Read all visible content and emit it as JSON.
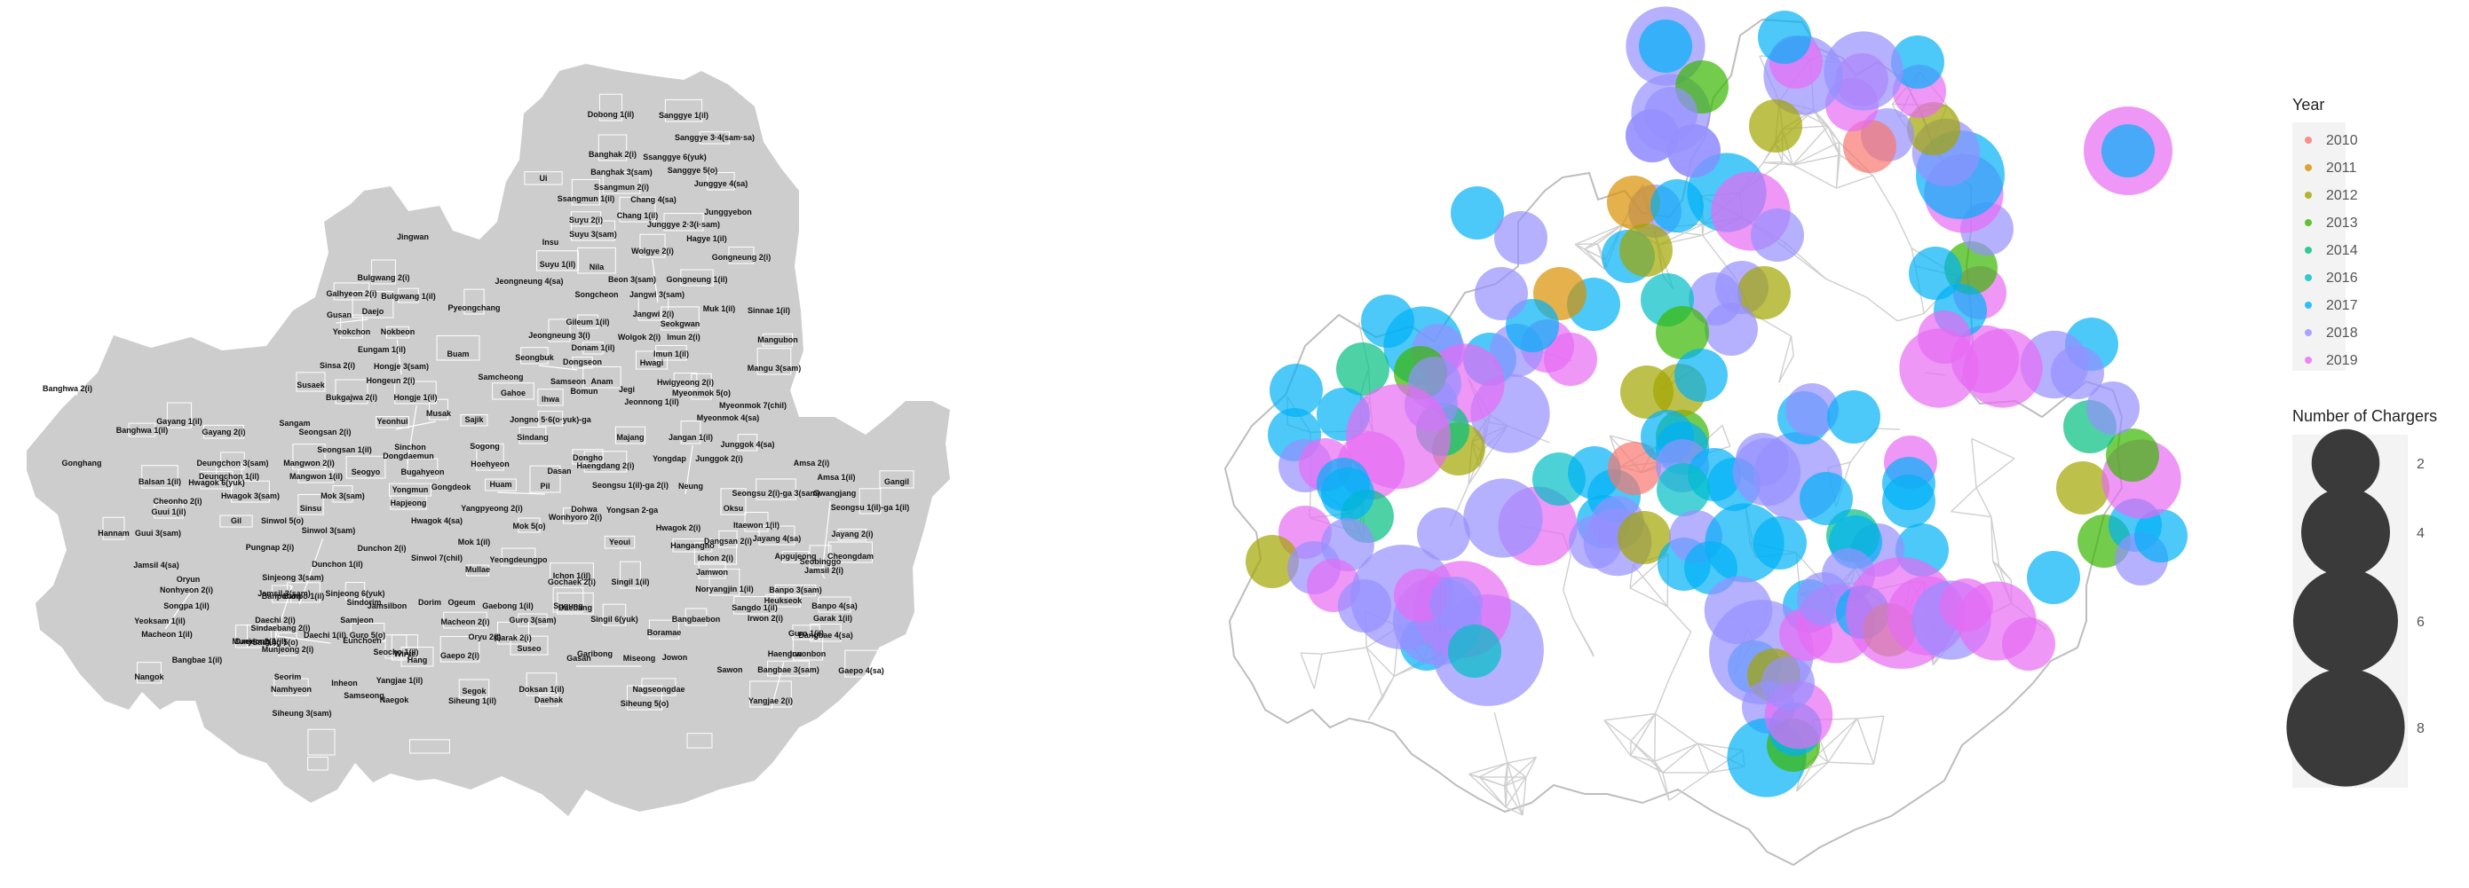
{
  "colors": {
    "land": "#cdcdcd",
    "boundary": "#ffffff",
    "outline": "#bdbdbd",
    "inner_boundary": "#cfcfcf",
    "year_colors": {
      "2010": "#f8766d",
      "2011": "#d89000",
      "2012": "#a3a500",
      "2013": "#39b600",
      "2014": "#00bf7d",
      "2016": "#00bfc4",
      "2017": "#00b0f6",
      "2018": "#9590ff",
      "2019": "#e76bf3"
    }
  },
  "left_map": {
    "labels": [
      "Dobong 1(il)",
      "Sanggye 1(il)",
      "Sanggye 3·4(sam·sa)",
      "Banghak 2(i)",
      "Ssanggye 6(yuk)",
      "Sanggye 5(o)",
      "Banghak 3(sam)",
      "Ui",
      "Ssangmun 2(i)",
      "Junggye 4(sa)",
      "Ssangmun 1(il)",
      "Chang 4(sa)",
      "Junggyebon",
      "Suyu 2(i)",
      "Chang 1(il)",
      "Suyu 3(sam)",
      "Junggye 2·3(i·sam)",
      "Insu",
      "Hagye 1(il)",
      "Jingwan",
      "Wolgye 2(i)",
      "Gongneung 2(i)",
      "Suyu 1(il)",
      "Nila",
      "Jeongneung 4(sa)",
      "Beon 3(sam)",
      "Gongneung 1(il)",
      "Bulgwang 2(i)",
      "Galhyeon 2(i)",
      "Bulgwang 1(il)",
      "Songcheon",
      "Jangwi 3(sam)",
      "Gusan",
      "Daejo",
      "Pyeongchang",
      "Gileum 1(il)",
      "Jangwi 2(i)",
      "Muk 1(il)",
      "Sinnae 1(il)",
      "Yeokchon",
      "Nokbeon",
      "Seokgwan",
      "Jeongneung 3(i)",
      "Wolgok 2(i)",
      "Imun 2(i)",
      "Eungam 1(il)",
      "Buam",
      "Donam 1(il)",
      "Imun 1(il)",
      "Mangubon",
      "Sinsa 2(i)",
      "Hongje 3(sam)",
      "Seongbuk",
      "Dongseon",
      "Hwagi",
      "Mangu 3(sam)",
      "Hongeun 2(i)",
      "Samcheong",
      "Samseon",
      "Anam",
      "Hwigyeong 2(i)",
      "Susaek",
      "Gahoe",
      "Bomun",
      "Jegi",
      "Myeonmok 5(o)",
      "Bukgajwa 2(i)",
      "Hongje 1(il)",
      "Ihwa",
      "Jeonnong 1(il)",
      "Myeonmok 7(chil)",
      "Sangam",
      "Yeonhui",
      "Musak",
      "Sajik",
      "Jongno 5·6(o·yuk)-ga",
      "Myeonmok 4(sa)",
      "Seongsan 2(i)",
      "Gayang 1(il)",
      "Gayang 2(i)",
      "Banghwa 2(i)",
      "Banghwa 1(il)",
      "Seongsan 1(il)",
      "Sinchon",
      "Sogong",
      "Sindang",
      "Majang",
      "Jangan 1(il)",
      "Junggok 4(sa)",
      "Gonghang",
      "Dongdaemun",
      "Dongho",
      "Huam",
      "Pil",
      "Haengdang 2(i)",
      "Yongdap",
      "Junggok 2(i)",
      "Amsa 2(i)",
      "Deungchon 3(sam)",
      "Mangwon 2(i)",
      "Bugahyeon",
      "Hoehyeon",
      "Dasan",
      "Amsa 1(il)",
      "Gangil",
      "Deungchon 1(il)",
      "Mangwon 1(il)",
      "Seogyo",
      "Gongdeok",
      "Seongsu 1(il)-ga 2(i)",
      "Neung",
      "Balsan 1(il)",
      "Hwagok 6(yuk)",
      "Yongmun",
      "Seongsu 2(i)-ga 3(sam)",
      "Gwangjang",
      "Cheonho 2(i)",
      "Hwagok 3(sam)",
      "Mok 3(sam)",
      "Hapjeong",
      "Sinsu",
      "Yangpyeong 2(i)",
      "Dohwa",
      "Yongsan 2-ga",
      "Oksu",
      "Seongsu 1(il)-ga 1(il)",
      "Guui 1(il)",
      "Gil",
      "Sinwol 5(o)",
      "Hwagok 4(sa)",
      "Mok 5(o)",
      "Wonhyoro 2(i)",
      "Itaewon 1(il)",
      "Hannam",
      "Guui 3(sam)",
      "Sinwol 3(sam)",
      "Hwagok 2(i)",
      "Dangsan 2(i)",
      "Jayang 4(sa)",
      "Jayang 2(i)",
      "Pungnap 2(i)",
      "Dunchon 2(i)",
      "Mok 1(il)",
      "Yeoui",
      "Hangangno",
      "Apgujeong",
      "Cheongdam",
      "Jamsil 4(sa)",
      "Dunchon 1(il)",
      "Sinwol 7(chil)",
      "Yeongdeungpo",
      "Ichon 2(i)",
      "Seobinggo",
      "Jamsil 2(i)",
      "Oryun",
      "Sinjeong 3(sam)",
      "Sinjeong 6(yuk)",
      "Mullae",
      "Ichon 1(il)",
      "Jamwon",
      "Nonhyeon 2(i)",
      "Jamsil 3(sam)",
      "Gochaek 2(i)",
      "Singil 1(il)",
      "Noryangjin 1(il)",
      "Banpo 3(sam)",
      "Songpa 1(il)",
      "Sindorim",
      "Dorim",
      "Daebang",
      "Heukseok",
      "Banpobon",
      "Banpo 1(il)",
      "Jamsilbon",
      "Ogeum",
      "Gaebong 1(il)",
      "Sugung",
      "Sangdo 1(il)",
      "Banpo 4(sa)",
      "Yeoksam 1(il)",
      "Daechi 2(i)",
      "Samjeon",
      "Macheon 2(i)",
      "Guro 3(sam)",
      "Singil 6(yuk)",
      "Bangbaebon",
      "Irwon 2(i)",
      "Garak 1(il)",
      "Macheon 1(il)",
      "Guro 5(o)",
      "Garak 2(i)",
      "Guro 1(il)",
      "Sindaebang 2(i)",
      "Daechi 1(il)",
      "Oryu 2(i)",
      "Boramae",
      "Bangbae 4(sa)",
      "Munjeong 1(il)",
      "Daerim 2(i)",
      "Eunchoen",
      "Sadang 5(o)",
      "Bangbae 1(il)",
      "Seocho 1(il)",
      "Gaepo 2(i)",
      "Suseo",
      "Garibong",
      "Jowon",
      "Haengun",
      "Irwonbon",
      "Munjeong 2(i)",
      "Wirye",
      "Hang",
      "Gasan",
      "Miseong",
      "Sawon",
      "Bangbae 3(sam)",
      "Gaepo 4(sa)",
      "Nangok",
      "Seorim",
      "Inheon",
      "Yangjae 1(il)",
      "Segok",
      "Doksan 1(il)",
      "Nagseongdae",
      "Namhyeon",
      "Samseong",
      "Naegok",
      "Siheung 1(il)",
      "Daehak",
      "Siheung 5(o)",
      "Yangjae 2(i)",
      "Siheung 3(sam)"
    ]
  },
  "chart_data": {
    "type": "bubble map",
    "legend": {
      "year_title": "Year",
      "years": [
        "2010",
        "2011",
        "2012",
        "2013",
        "2014",
        "2016",
        "2017",
        "2018",
        "2019"
      ],
      "size_title": "Number of Chargers",
      "size_values": [
        2,
        4,
        6,
        8
      ]
    },
    "points": [
      {
        "year": "2018",
        "chargers": 3
      },
      {
        "year": "2018",
        "chargers": 3
      },
      {
        "year": "2018",
        "chargers": 1
      },
      {
        "year": "2018",
        "chargers": 1
      },
      {
        "year": "2019",
        "chargers": 4
      },
      {
        "year": "2017",
        "chargers": 1
      },
      {
        "year": "2018",
        "chargers": 1
      },
      {
        "year": "2018",
        "chargers": 1
      },
      {
        "year": "2011",
        "chargers": 1
      },
      {
        "year": "2017",
        "chargers": 1
      },
      {
        "year": "2017",
        "chargers": 3
      },
      {
        "year": "2019",
        "chargers": 3
      },
      {
        "year": "2018",
        "chargers": 1
      },
      {
        "year": "2018",
        "chargers": 1
      },
      {
        "year": "2012",
        "chargers": 1
      },
      {
        "year": "2018",
        "chargers": 1
      },
      {
        "year": "2018",
        "chargers": 1
      },
      {
        "year": "2017",
        "chargers": 1
      },
      {
        "year": "2011",
        "chargers": 1
      },
      {
        "year": "2017",
        "chargers": 1
      },
      {
        "year": "2016",
        "chargers": 1
      },
      {
        "year": "2012",
        "chargers": 1
      },
      {
        "year": "2013",
        "chargers": 1
      },
      {
        "year": "2017",
        "chargers": 1
      },
      {
        "year": "2019",
        "chargers": 1
      },
      {
        "year": "2019",
        "chargers": 1
      },
      {
        "year": "2018",
        "chargers": 1
      },
      {
        "year": "2017",
        "chargers": 3
      },
      {
        "year": "2018",
        "chargers": 1
      },
      {
        "year": "2017",
        "chargers": 1
      },
      {
        "year": "2018",
        "chargers": 1
      },
      {
        "year": "2017",
        "chargers": 1
      },
      {
        "year": "2018",
        "chargers": 3
      },
      {
        "year": "2012",
        "chargers": 1
      },
      {
        "year": "2013",
        "chargers": 1
      },
      {
        "year": "2012",
        "chargers": 1
      },
      {
        "year": "2017",
        "chargers": 1
      },
      {
        "year": "2019",
        "chargers": 3
      },
      {
        "year": "2012",
        "chargers": 1
      },
      {
        "year": "2014",
        "chargers": 1
      },
      {
        "year": "2018",
        "chargers": 1
      },
      {
        "year": "2014",
        "chargers": 1
      },
      {
        "year": "2013",
        "chargers": 1
      },
      {
        "year": "2018",
        "chargers": 1
      },
      {
        "year": "2017",
        "chargers": 1
      },
      {
        "year": "2017",
        "chargers": 1
      },
      {
        "year": "2017",
        "chargers": 1
      },
      {
        "year": "2018",
        "chargers": 1
      },
      {
        "year": "2019",
        "chargers": 1
      },
      {
        "year": "2019",
        "chargers": 6
      },
      {
        "year": "2019",
        "chargers": 2
      },
      {
        "year": "2017",
        "chargers": 1
      },
      {
        "year": "2014",
        "chargers": 1
      },
      {
        "year": "2017",
        "chargers": 1
      },
      {
        "year": "2019",
        "chargers": 1
      },
      {
        "year": "2018",
        "chargers": 1
      },
      {
        "year": "2012",
        "chargers": 1
      },
      {
        "year": "2018",
        "chargers": 1
      },
      {
        "year": "2019",
        "chargers": 1
      },
      {
        "year": "2018",
        "chargers": 1
      },
      {
        "year": "2017",
        "chargers": 1
      },
      {
        "year": "2018",
        "chargers": 6
      },
      {
        "year": "2018",
        "chargers": 7
      },
      {
        "year": "2019",
        "chargers": 5
      },
      {
        "year": "2018",
        "chargers": 4
      },
      {
        "year": "2019",
        "chargers": 1
      },
      {
        "year": "2018",
        "chargers": 1
      },
      {
        "year": "2019",
        "chargers": 3
      },
      {
        "year": "2018",
        "chargers": 1
      },
      {
        "year": "2016",
        "chargers": 1
      },
      {
        "year": "2018",
        "chargers": 3
      },
      {
        "year": "2017",
        "chargers": 1
      },
      {
        "year": "2018",
        "chargers": 1
      },
      {
        "year": "2017",
        "chargers": 1
      },
      {
        "year": "2016",
        "chargers": 1
      },
      {
        "year": "2017",
        "chargers": 1
      },
      {
        "year": "2010",
        "chargers": 1
      },
      {
        "year": "2017",
        "chargers": 1
      },
      {
        "year": "2017",
        "chargers": 1
      },
      {
        "year": "2018",
        "chargers": 1
      },
      {
        "year": "2018",
        "chargers": 1
      },
      {
        "year": "2017",
        "chargers": 1
      },
      {
        "year": "2017",
        "chargers": 1
      },
      {
        "year": "2018",
        "chargers": 2
      },
      {
        "year": "2016",
        "chargers": 1
      },
      {
        "year": "2018",
        "chargers": 1
      },
      {
        "year": "2018",
        "chargers": 2
      },
      {
        "year": "2012",
        "chargers": 1
      },
      {
        "year": "2017",
        "chargers": 1
      },
      {
        "year": "2018",
        "chargers": 1
      },
      {
        "year": "2017",
        "chargers": 3
      },
      {
        "year": "2017",
        "chargers": 1
      },
      {
        "year": "2017",
        "chargers": 1
      },
      {
        "year": "2018",
        "chargers": 4
      },
      {
        "year": "2017",
        "chargers": 1
      },
      {
        "year": "2018",
        "chargers": 1
      },
      {
        "year": "2017",
        "chargers": 1
      },
      {
        "year": "2019",
        "chargers": 1
      },
      {
        "year": "2017",
        "chargers": 1
      },
      {
        "year": "2017",
        "chargers": 1
      },
      {
        "year": "2017",
        "chargers": 1
      },
      {
        "year": "2018",
        "chargers": 1
      },
      {
        "year": "2014",
        "chargers": 1
      },
      {
        "year": "2017",
        "chargers": 1
      },
      {
        "year": "2017",
        "chargers": 1
      },
      {
        "year": "2018",
        "chargers": 1
      },
      {
        "year": "2017",
        "chargers": 1
      },
      {
        "year": "2018",
        "chargers": 2
      },
      {
        "year": "2017",
        "chargers": 1
      },
      {
        "year": "2018",
        "chargers": 6
      },
      {
        "year": "2012",
        "chargers": 1
      },
      {
        "year": "2018",
        "chargers": 1
      },
      {
        "year": "2017",
        "chargers": 3
      },
      {
        "year": "2013",
        "chargers": 1
      },
      {
        "year": "2017",
        "chargers": 1
      },
      {
        "year": "2019",
        "chargers": 2
      },
      {
        "year": "2018",
        "chargers": 1
      },
      {
        "year": "2019",
        "chargers": 1
      },
      {
        "year": "2019",
        "chargers": 3
      },
      {
        "year": "2018",
        "chargers": 1
      },
      {
        "year": "2017",
        "chargers": 1
      },
      {
        "year": "2012",
        "chargers": 1
      },
      {
        "year": "2019",
        "chargers": 7
      },
      {
        "year": "2019",
        "chargers": 3
      },
      {
        "year": "2018",
        "chargers": 3
      },
      {
        "year": "2019",
        "chargers": 3
      },
      {
        "year": "2019",
        "chargers": 1
      },
      {
        "year": "2019",
        "chargers": 1
      },
      {
        "year": "2017",
        "chargers": 1
      },
      {
        "year": "2012",
        "chargers": 1
      },
      {
        "year": "2013",
        "chargers": 1
      },
      {
        "year": "2017",
        "chargers": 1
      },
      {
        "year": "2018",
        "chargers": 1
      },
      {
        "year": "2017",
        "chargers": 1
      },
      {
        "year": "2019",
        "chargers": 3
      },
      {
        "year": "2013",
        "chargers": 1
      },
      {
        "year": "2014",
        "chargers": 1
      },
      {
        "year": "2018",
        "chargers": 1
      },
      {
        "year": "2017",
        "chargers": 1
      },
      {
        "year": "2018",
        "chargers": 1
      },
      {
        "year": "2018",
        "chargers": 2
      },
      {
        "year": "2019",
        "chargers": 3
      },
      {
        "year": "2019",
        "chargers": 2
      },
      {
        "year": "2019",
        "chargers": 1
      },
      {
        "year": "2013",
        "chargers": 1
      },
      {
        "year": "2017",
        "chargers": 1
      },
      {
        "year": "2017",
        "chargers": 1
      },
      {
        "year": "2019",
        "chargers": 1
      },
      {
        "year": "2019",
        "chargers": 3
      },
      {
        "year": "2018",
        "chargers": 1
      },
      {
        "year": "2019",
        "chargers": 3
      },
      {
        "year": "2017",
        "chargers": 4
      },
      {
        "year": "2018",
        "chargers": 2
      },
      {
        "year": "2012",
        "chargers": 1
      },
      {
        "year": "2019",
        "chargers": 1
      },
      {
        "year": "2017",
        "chargers": 1
      },
      {
        "year": "2018",
        "chargers": 1
      },
      {
        "year": "2010",
        "chargers": 1
      },
      {
        "year": "2019",
        "chargers": 1
      },
      {
        "year": "2019",
        "chargers": 1
      },
      {
        "year": "2018",
        "chargers": 3
      },
      {
        "year": "2018",
        "chargers": 3
      },
      {
        "year": "2019",
        "chargers": 1
      },
      {
        "year": "2017",
        "chargers": 1
      },
      {
        "year": "2013",
        "chargers": 1
      },
      {
        "year": "2012",
        "chargers": 1
      },
      {
        "year": "2017",
        "chargers": 1
      },
      {
        "year": "2018",
        "chargers": 1
      },
      {
        "year": "2018",
        "chargers": 1
      },
      {
        "year": "2018",
        "chargers": 1
      },
      {
        "year": "2017",
        "chargers": 1
      }
    ]
  }
}
